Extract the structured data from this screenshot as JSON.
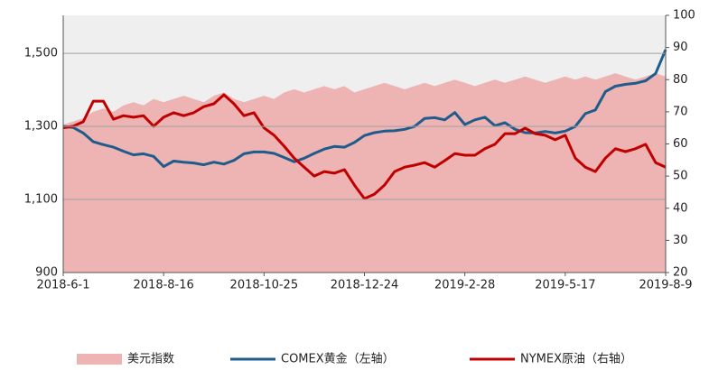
{
  "chart_data": {
    "type": "line",
    "categories": [
      "2018-6-1",
      null,
      null,
      null,
      null,
      null,
      null,
      null,
      null,
      null,
      "2018-8-16",
      null,
      null,
      null,
      null,
      null,
      null,
      null,
      null,
      null,
      "2018-10-25",
      null,
      null,
      null,
      null,
      null,
      null,
      null,
      null,
      null,
      "2018-12-24",
      null,
      null,
      null,
      null,
      null,
      null,
      null,
      null,
      null,
      "2019-2-28",
      null,
      null,
      null,
      null,
      null,
      null,
      null,
      null,
      null,
      "2019-5-17",
      null,
      null,
      null,
      null,
      null,
      null,
      null,
      null,
      null,
      "2019-8-9"
    ],
    "series": [
      {
        "name": "美元指数",
        "color": "#eeb4b4",
        "kind": "area",
        "axis": "y2",
        "values": [
          66,
          67,
          68,
          70,
          71,
          70,
          72,
          73,
          72,
          74,
          73,
          74,
          75,
          74,
          73,
          75,
          76,
          74,
          73,
          74,
          75,
          74,
          76,
          77,
          76,
          77,
          78,
          77,
          78,
          76,
          77,
          78,
          79,
          78,
          77,
          78,
          79,
          78,
          79,
          80,
          79,
          78,
          79,
          80,
          79,
          80,
          81,
          80,
          79,
          80,
          81,
          80,
          81,
          80,
          81,
          82,
          81,
          80,
          81,
          82,
          81
        ]
      },
      {
        "name": "COMEX黄金（左轴）",
        "color": "#1f5c8b",
        "kind": "line",
        "values": [
          1300,
          1297,
          1282,
          1258,
          1250,
          1243,
          1232,
          1222,
          1225,
          1218,
          1190,
          1205,
          1202,
          1200,
          1195,
          1202,
          1197,
          1207,
          1225,
          1230,
          1230,
          1226,
          1215,
          1203,
          1213,
          1226,
          1238,
          1245,
          1243,
          1256,
          1275,
          1283,
          1287,
          1288,
          1292,
          1300,
          1322,
          1324,
          1318,
          1338,
          1305,
          1318,
          1325,
          1302,
          1310,
          1292,
          1283,
          1282,
          1286,
          1282,
          1287,
          1300,
          1335,
          1345,
          1395,
          1410,
          1415,
          1418,
          1425,
          1445,
          1510
        ]
      },
      {
        "name": "NYMEX原油（右轴）",
        "color": "#c00000",
        "kind": "line",
        "axis": "y2",
        "values": [
          65,
          65.5,
          66.9,
          73.3,
          73.3,
          67.7,
          68.8,
          68.3,
          68.8,
          65.5,
          68.3,
          69.7,
          68.8,
          69.7,
          71.6,
          72.5,
          75.3,
          72.5,
          68.8,
          69.7,
          65,
          62.7,
          59.3,
          55.6,
          52.8,
          50,
          51.4,
          50.9,
          52,
          47.2,
          43,
          44.4,
          47.2,
          51.4,
          52.8,
          53.4,
          54.2,
          52.8,
          54.8,
          57,
          56.5,
          56.5,
          58.5,
          59.9,
          63.2,
          63.2,
          64.9,
          63.2,
          62.7,
          61.3,
          62.7,
          55.6,
          52.8,
          51.4,
          55.6,
          58.5,
          57.6,
          58.5,
          59.9,
          54.2,
          52.8
        ]
      }
    ],
    "ylim": [
      900,
      1604
    ],
    "yticks": [
      {
        "value": 900,
        "label": "900"
      },
      {
        "value": 1100,
        "label": "1,100"
      },
      {
        "value": 1300,
        "label": "1,300"
      },
      {
        "value": 1500,
        "label": "1,500"
      }
    ],
    "y2lim": [
      20,
      100
    ],
    "y2ticks": [
      20,
      30,
      40,
      50,
      60,
      70,
      80,
      90,
      100
    ],
    "grid": true
  }
}
